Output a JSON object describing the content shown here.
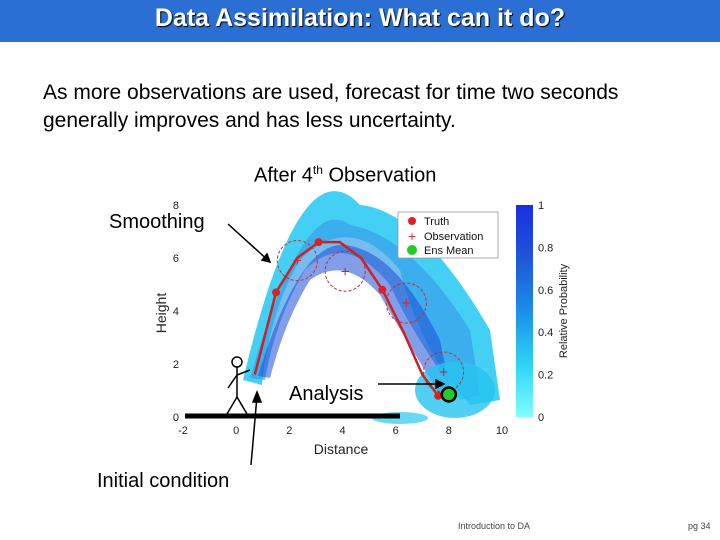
{
  "header": {
    "title": "Data Assimilation: What can it do?",
    "color": "#2b6fd4"
  },
  "intro_text": "As more observations are used, forecast for time two seconds generally improves and has less uncertainty.",
  "subtitle": {
    "prefix": "After 4",
    "sup": "th",
    "suffix": " Observation"
  },
  "callouts": {
    "smoothing": "Smoothing",
    "analysis": "Analysis",
    "initial_condition": "Initial condition"
  },
  "footer": {
    "left": "Introduction to DA",
    "right": "pg 34"
  },
  "chart_data": {
    "type": "scatter",
    "xlabel": "Distance",
    "ylabel": "Height",
    "xlim": [
      -2,
      10
    ],
    "ylim": [
      0,
      8
    ],
    "x_ticks": [
      "-2",
      "0",
      "2",
      "4",
      "6",
      "8",
      "10"
    ],
    "y_ticks": [
      "0",
      "2",
      "4",
      "6",
      "8"
    ],
    "colorbar": {
      "label": "Relative Probability",
      "ticks": [
        "0",
        "0.2",
        "0.4",
        "0.6",
        "0.8",
        "1"
      ]
    },
    "legend": {
      "placement": "top-right",
      "entries": [
        "Truth",
        "Observation",
        "Ens Mean"
      ]
    },
    "colors": {
      "truth": "#e02020",
      "observation": "#e02020",
      "ens_mean": "#22cc22",
      "ensemble": "#1ec8f0"
    },
    "truth": {
      "x": [
        0.7,
        1.5,
        2.3,
        3.1,
        3.9,
        4.7,
        5.5,
        6.3,
        7.0,
        7.6
      ],
      "y": [
        1.6,
        4.7,
        6.0,
        6.6,
        6.6,
        6.0,
        4.8,
        3.2,
        1.6,
        0.8
      ]
    },
    "observations": {
      "x": [
        2.3,
        4.1,
        6.4,
        7.8
      ],
      "y": [
        5.9,
        5.5,
        4.3,
        1.7
      ]
    },
    "ens_mean": {
      "x": [
        8.0
      ],
      "y": [
        0.85
      ]
    }
  }
}
